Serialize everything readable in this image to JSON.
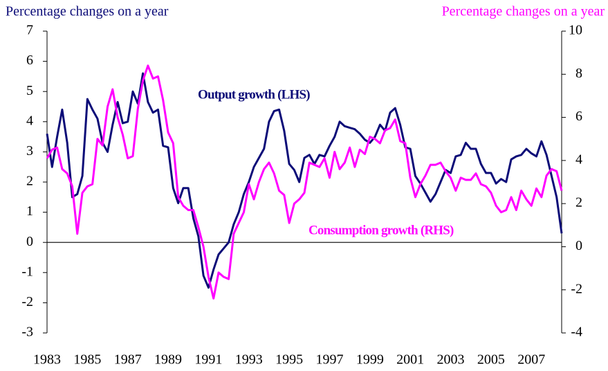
{
  "chart_data": {
    "type": "line",
    "y_label": "Percentage changes on a year",
    "y2_label": "Percentage changes on a year",
    "annotations": [
      "Output growth (LHS)",
      "Consumption growth (RHS)"
    ],
    "x": [
      1983,
      1983.25,
      1983.5,
      1983.75,
      1984,
      1984.25,
      1984.5,
      1984.75,
      1985,
      1985.25,
      1985.5,
      1985.75,
      1986,
      1986.25,
      1986.5,
      1986.75,
      1987,
      1987.25,
      1987.5,
      1987.75,
      1988,
      1988.25,
      1988.5,
      1988.75,
      1989,
      1989.25,
      1989.5,
      1989.75,
      1990,
      1990.25,
      1990.5,
      1990.75,
      1991,
      1991.25,
      1991.5,
      1991.75,
      1992,
      1992.25,
      1992.5,
      1992.75,
      1993,
      1993.25,
      1993.5,
      1993.75,
      1994,
      1994.25,
      1994.5,
      1994.75,
      1995,
      1995.25,
      1995.5,
      1995.75,
      1996,
      1996.25,
      1996.5,
      1996.75,
      1997,
      1997.25,
      1997.5,
      1997.75,
      1998,
      1998.25,
      1998.5,
      1998.75,
      1999,
      1999.25,
      1999.5,
      1999.75,
      2000,
      2000.25,
      2000.5,
      2000.75,
      2001,
      2001.25,
      2001.5,
      2001.75,
      2002,
      2002.25,
      2002.5,
      2002.75,
      2003,
      2003.25,
      2003.5,
      2003.75,
      2004,
      2004.25,
      2004.5,
      2004.75,
      2005,
      2005.25,
      2005.5,
      2005.75,
      2006,
      2006.25,
      2006.5,
      2006.75,
      2007,
      2007.25,
      2007.5,
      2007.75,
      2008,
      2008.25,
      2008.5
    ],
    "series": [
      {
        "name": "Output growth (LHS)",
        "color": "#0c0c78",
        "axis": "y",
        "values": [
          3.6,
          2.5,
          3.5,
          4.4,
          3.3,
          1.5,
          1.6,
          2.2,
          4.75,
          4.4,
          4.1,
          3.3,
          3.0,
          3.9,
          4.65,
          3.95,
          4.0,
          5.0,
          4.6,
          5.6,
          4.65,
          4.3,
          4.4,
          3.2,
          3.15,
          1.8,
          1.3,
          1.8,
          1.8,
          0.8,
          0.2,
          -1.1,
          -1.5,
          -0.9,
          -0.4,
          -0.2,
          0.0,
          0.6,
          1.0,
          1.6,
          2.0,
          2.5,
          2.8,
          3.1,
          4.0,
          4.35,
          4.4,
          3.7,
          2.6,
          2.4,
          2.0,
          2.8,
          2.9,
          2.6,
          2.9,
          2.85,
          3.2,
          3.5,
          4.0,
          3.85,
          3.8,
          3.75,
          3.6,
          3.4,
          3.3,
          3.5,
          3.9,
          3.7,
          4.3,
          4.45,
          3.9,
          3.15,
          3.1,
          2.2,
          1.95,
          1.65,
          1.35,
          1.6,
          2.0,
          2.4,
          2.3,
          2.85,
          2.9,
          3.3,
          3.1,
          3.1,
          2.6,
          2.3,
          2.3,
          1.95,
          2.1,
          2.0,
          2.75,
          2.85,
          2.9,
          3.1,
          2.95,
          2.85,
          3.35,
          2.9,
          2.2,
          1.5,
          0.3
        ]
      },
      {
        "name": "Consumption growth (RHS)",
        "color": "#ff00ff",
        "axis": "y2",
        "values": [
          4.1,
          4.5,
          4.6,
          3.6,
          3.4,
          2.8,
          0.6,
          2.5,
          2.8,
          2.9,
          5.0,
          4.7,
          6.5,
          7.3,
          6.0,
          5.2,
          4.1,
          4.2,
          6.4,
          7.7,
          8.4,
          7.8,
          7.9,
          6.8,
          5.3,
          4.8,
          2.3,
          1.9,
          1.7,
          1.7,
          0.9,
          0.0,
          -1.4,
          -2.4,
          -1.2,
          -1.4,
          -1.5,
          0.6,
          1.1,
          1.6,
          2.9,
          2.2,
          3.0,
          3.6,
          3.9,
          3.4,
          2.6,
          2.4,
          1.1,
          2.0,
          2.2,
          2.5,
          3.9,
          3.8,
          3.7,
          4.1,
          3.2,
          4.4,
          3.6,
          3.9,
          4.6,
          3.7,
          4.5,
          4.3,
          5.1,
          5.0,
          4.8,
          5.4,
          5.5,
          5.9,
          4.9,
          4.8,
          3.2,
          2.3,
          2.9,
          3.3,
          3.8,
          3.8,
          3.9,
          3.5,
          3.2,
          2.6,
          3.2,
          3.1,
          3.1,
          3.4,
          2.9,
          2.8,
          2.5,
          1.9,
          1.6,
          1.7,
          2.3,
          1.7,
          2.6,
          2.2,
          1.9,
          2.7,
          2.3,
          3.3,
          3.6,
          3.5,
          2.6
        ]
      }
    ],
    "xlim": [
      1983,
      2008.5
    ],
    "xticks": [
      1983,
      1985,
      1987,
      1989,
      1991,
      1993,
      1995,
      1997,
      1999,
      2001,
      2003,
      2005,
      2007
    ],
    "ylim": [
      -3,
      7
    ],
    "yticks": [
      -3,
      -2,
      -1,
      0,
      1,
      2,
      3,
      4,
      5,
      6,
      7
    ],
    "y2lim": [
      -4,
      10
    ],
    "y2ticks": [
      -4,
      -2,
      0,
      2,
      4,
      6,
      8,
      10
    ]
  }
}
